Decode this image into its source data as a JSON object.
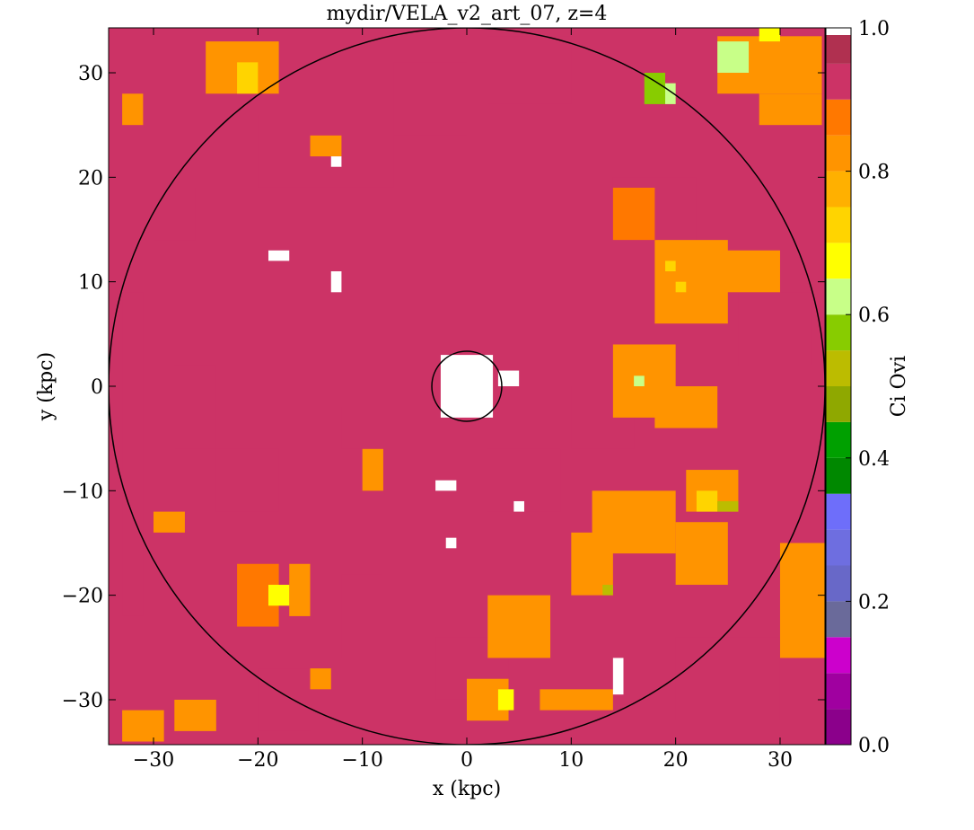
{
  "chart_data": {
    "type": "heatmap",
    "title": "mydir/VELA_v2_art_07, z=4",
    "xlabel": "x  (kpc)",
    "ylabel": "y  (kpc)",
    "xlim": [
      -34.3,
      34.3
    ],
    "ylim": [
      -34.3,
      34.3
    ],
    "xticks": [
      -30,
      -20,
      -10,
      0,
      10,
      20,
      30
    ],
    "yticks": [
      -30,
      -20,
      -10,
      0,
      10,
      20,
      30
    ],
    "xtick_labels": [
      "−30",
      "−20",
      "−10",
      "0",
      "10",
      "20",
      "30"
    ],
    "ytick_labels": [
      "−30",
      "−20",
      "−10",
      "0",
      "10",
      "20",
      "30"
    ],
    "grid": false,
    "background_value": 0.95,
    "circles": [
      {
        "name": "outer-radius",
        "cx": 0,
        "cy": 0,
        "r": 34.3
      },
      {
        "name": "inner-radius",
        "cx": 0,
        "cy": 0,
        "r": 3.35
      }
    ],
    "colorbar": {
      "label": "Ci Ovi",
      "range": [
        0.0,
        1.0
      ],
      "ticks": [
        0.0,
        0.2,
        0.4,
        0.6,
        0.8,
        1.0
      ],
      "tick_labels": [
        "0.0",
        "0.2",
        "0.4",
        "0.6",
        "0.8",
        "1.0"
      ],
      "bands": [
        {
          "lo": 0.0,
          "hi": 0.05,
          "color": "#8b008b"
        },
        {
          "lo": 0.05,
          "hi": 0.1,
          "color": "#a000a0"
        },
        {
          "lo": 0.1,
          "hi": 0.15,
          "color": "#cc00cc"
        },
        {
          "lo": 0.15,
          "hi": 0.2,
          "color": "#6a6a9a"
        },
        {
          "lo": 0.2,
          "hi": 0.25,
          "color": "#6868c8"
        },
        {
          "lo": 0.25,
          "hi": 0.3,
          "color": "#6e6ee0"
        },
        {
          "lo": 0.3,
          "hi": 0.35,
          "color": "#6e6efa"
        },
        {
          "lo": 0.35,
          "hi": 0.4,
          "color": "#008800"
        },
        {
          "lo": 0.4,
          "hi": 0.45,
          "color": "#00a000"
        },
        {
          "lo": 0.45,
          "hi": 0.5,
          "color": "#8fa800"
        },
        {
          "lo": 0.5,
          "hi": 0.55,
          "color": "#bcbc00"
        },
        {
          "lo": 0.55,
          "hi": 0.6,
          "color": "#88cc00"
        },
        {
          "lo": 0.6,
          "hi": 0.65,
          "color": "#c8ff88"
        },
        {
          "lo": 0.65,
          "hi": 0.7,
          "color": "#ffff00"
        },
        {
          "lo": 0.7,
          "hi": 0.75,
          "color": "#ffd400"
        },
        {
          "lo": 0.75,
          "hi": 0.8,
          "color": "#ffb000"
        },
        {
          "lo": 0.8,
          "hi": 0.85,
          "color": "#ff9400"
        },
        {
          "lo": 0.85,
          "hi": 0.9,
          "color": "#ff7800"
        },
        {
          "lo": 0.9,
          "hi": 0.95,
          "color": "#cc3366"
        },
        {
          "lo": 0.95,
          "hi": 0.99,
          "color": "#b03050"
        },
        {
          "lo": 0.99,
          "hi": 1.0,
          "color": "#ffffff"
        }
      ]
    },
    "regions": [
      {
        "x": [
          -33.0,
          -31.0
        ],
        "y": [
          -22.0,
          9.0
        ],
        "value": 0.92
      },
      {
        "x": [
          -20.0,
          -7.0
        ],
        "y": [
          19.0,
          26.0
        ],
        "value": 0.92
      },
      {
        "x": [
          -7.0,
          0.0
        ],
        "y": [
          24.0,
          31.0
        ],
        "value": 0.92
      },
      {
        "x": [
          2.0,
          10.0
        ],
        "y": [
          27.0,
          33.5
        ],
        "value": 0.92
      },
      {
        "x": [
          -28.0,
          -24.0
        ],
        "y": [
          -6.0,
          2.0
        ],
        "value": 0.92
      },
      {
        "x": [
          -24.0,
          -18.0
        ],
        "y": [
          -12.0,
          -6.0
        ],
        "value": 0.92
      },
      {
        "x": [
          -12.0,
          -8.0
        ],
        "y": [
          -26.0,
          -18.0
        ],
        "value": 0.92
      },
      {
        "x": [
          -20.0,
          -15.0
        ],
        "y": [
          -33.0,
          -27.0
        ],
        "value": 0.92
      },
      {
        "x": [
          -3.0,
          4.0
        ],
        "y": [
          -30.0,
          -24.0
        ],
        "value": 0.92
      },
      {
        "x": [
          2.0,
          9.0
        ],
        "y": [
          -12.0,
          -6.0
        ],
        "value": 0.92
      },
      {
        "x": [
          14.0,
          22.0
        ],
        "y": [
          14.0,
          20.0
        ],
        "value": 0.92
      },
      {
        "x": [
          20.0,
          30.0
        ],
        "y": [
          -32.0,
          -24.0
        ],
        "value": 0.92
      },
      {
        "x": [
          26.0,
          33.0
        ],
        "y": [
          2.0,
          9.0
        ],
        "value": 0.92
      },
      {
        "x": [
          10.0,
          16.0
        ],
        "y": [
          -6.0,
          0.0
        ],
        "value": 0.92
      },
      {
        "x": [
          -30.0,
          -26.0
        ],
        "y": [
          14.0,
          19.0
        ],
        "value": 0.92
      },
      {
        "x": [
          -12.0,
          -8.0
        ],
        "y": [
          -6.0,
          -2.0
        ],
        "value": 0.92
      },
      {
        "x": [
          -25.0,
          -18.0
        ],
        "y": [
          28.0,
          33.0
        ],
        "value": 0.82
      },
      {
        "x": [
          -33.0,
          -31.0
        ],
        "y": [
          25.0,
          28.0
        ],
        "value": 0.82
      },
      {
        "x": [
          -15.0,
          -12.0
        ],
        "y": [
          22.0,
          24.0
        ],
        "value": 0.82
      },
      {
        "x": [
          14.0,
          18.0
        ],
        "y": [
          14.0,
          19.0
        ],
        "value": 0.87
      },
      {
        "x": [
          18.0,
          25.0
        ],
        "y": [
          6.0,
          14.0
        ],
        "value": 0.82
      },
      {
        "x": [
          24.0,
          30.0
        ],
        "y": [
          9.0,
          13.0
        ],
        "value": 0.82
      },
      {
        "x": [
          14.0,
          20.0
        ],
        "y": [
          -3.0,
          4.0
        ],
        "value": 0.82
      },
      {
        "x": [
          18.0,
          24.0
        ],
        "y": [
          -4.0,
          0.0
        ],
        "value": 0.82
      },
      {
        "x": [
          21.0,
          26.0
        ],
        "y": [
          -12.0,
          -8.0
        ],
        "value": 0.82
      },
      {
        "x": [
          12.0,
          20.0
        ],
        "y": [
          -16.0,
          -10.0
        ],
        "value": 0.82
      },
      {
        "x": [
          10.0,
          14.0
        ],
        "y": [
          -20.0,
          -14.0
        ],
        "value": 0.82
      },
      {
        "x": [
          20.0,
          25.0
        ],
        "y": [
          -19.0,
          -13.0
        ],
        "value": 0.82
      },
      {
        "x": [
          30.0,
          34.3
        ],
        "y": [
          -26.0,
          -15.0
        ],
        "value": 0.82
      },
      {
        "x": [
          2.0,
          8.0
        ],
        "y": [
          -26.0,
          -20.0
        ],
        "value": 0.82
      },
      {
        "x": [
          -22.0,
          -18.0
        ],
        "y": [
          -23.0,
          -17.0
        ],
        "value": 0.87
      },
      {
        "x": [
          -17.0,
          -15.0
        ],
        "y": [
          -22.0,
          -17.0
        ],
        "value": 0.82
      },
      {
        "x": [
          -10.0,
          -8.0
        ],
        "y": [
          -10.0,
          -6.0
        ],
        "value": 0.82
      },
      {
        "x": [
          -30.0,
          -27.0
        ],
        "y": [
          -14.0,
          -12.0
        ],
        "value": 0.82
      },
      {
        "x": [
          0.0,
          4.0
        ],
        "y": [
          -32.0,
          -28.0
        ],
        "value": 0.82
      },
      {
        "x": [
          7.0,
          14.0
        ],
        "y": [
          -31.0,
          -29.0
        ],
        "value": 0.82
      },
      {
        "x": [
          -28.0,
          -24.0
        ],
        "y": [
          -33.0,
          -30.0
        ],
        "value": 0.82
      },
      {
        "x": [
          24.0,
          34.0
        ],
        "y": [
          28.0,
          33.5
        ],
        "value": 0.82
      },
      {
        "x": [
          28.0,
          34.0
        ],
        "y": [
          25.0,
          28.0
        ],
        "value": 0.82
      },
      {
        "x": [
          -33.0,
          -29.0
        ],
        "y": [
          -34.0,
          -31.0
        ],
        "value": 0.82
      },
      {
        "x": [
          -15.0,
          -13.0
        ],
        "y": [
          -29.0,
          -27.0
        ],
        "value": 0.82
      },
      {
        "x": [
          24.0,
          27.0
        ],
        "y": [
          30.0,
          33.0
        ],
        "value": 0.62
      },
      {
        "x": [
          17.0,
          19.0
        ],
        "y": [
          27.0,
          30.0
        ],
        "value": 0.57
      },
      {
        "x": [
          19.0,
          20.0
        ],
        "y": [
          27.0,
          29.0
        ],
        "value": 0.62
      },
      {
        "x": [
          28.0,
          30.0
        ],
        "y": [
          33.0,
          34.3
        ],
        "value": 0.68
      },
      {
        "x": [
          -22.0,
          -20.0
        ],
        "y": [
          28.0,
          31.0
        ],
        "value": 0.72
      },
      {
        "x": [
          -19.0,
          -17.0
        ],
        "y": [
          -21.0,
          -19.0
        ],
        "value": 0.68
      },
      {
        "x": [
          3.0,
          4.5
        ],
        "y": [
          -31.0,
          -29.0
        ],
        "value": 0.68
      },
      {
        "x": [
          22.0,
          24.0
        ],
        "y": [
          -12.0,
          -10.0
        ],
        "value": 0.72
      },
      {
        "x": [
          16.0,
          17.0
        ],
        "y": [
          0.0,
          1.0
        ],
        "value": 0.62
      },
      {
        "x": [
          24.0,
          26.0
        ],
        "y": [
          -12.0,
          -11.0
        ],
        "value": 0.55
      },
      {
        "x": [
          13.0,
          14.0
        ],
        "y": [
          -20.0,
          -19.0
        ],
        "value": 0.55
      },
      {
        "x": [
          19.0,
          20.0
        ],
        "y": [
          11.0,
          12.0
        ],
        "value": 0.72
      },
      {
        "x": [
          20.0,
          21.0
        ],
        "y": [
          9.0,
          10.0
        ],
        "value": 0.72
      },
      {
        "x": [
          14.0,
          15.0
        ],
        "y": [
          -29.5,
          -26.0
        ],
        "value": 1.0
      },
      {
        "x": [
          -2.5,
          2.5
        ],
        "y": [
          -3.0,
          3.0
        ],
        "value": 1.0
      },
      {
        "x": [
          -19.0,
          -17.0
        ],
        "y": [
          12.0,
          13.0
        ],
        "value": 1.0
      },
      {
        "x": [
          -13.0,
          -12.0
        ],
        "y": [
          9.0,
          11.0
        ],
        "value": 1.0
      },
      {
        "x": [
          -13.0,
          -12.0
        ],
        "y": [
          21.0,
          22.0
        ],
        "value": 1.0
      },
      {
        "x": [
          -3.0,
          -1.0
        ],
        "y": [
          -10.0,
          -9.0
        ],
        "value": 1.0
      },
      {
        "x": [
          4.5,
          5.5
        ],
        "y": [
          -12.0,
          -11.0
        ],
        "value": 1.0
      },
      {
        "x": [
          3.0,
          5.0
        ],
        "y": [
          0.0,
          1.5
        ],
        "value": 1.0
      },
      {
        "x": [
          -2.0,
          -1.0
        ],
        "y": [
          -15.5,
          -14.5
        ],
        "value": 1.0
      }
    ]
  }
}
